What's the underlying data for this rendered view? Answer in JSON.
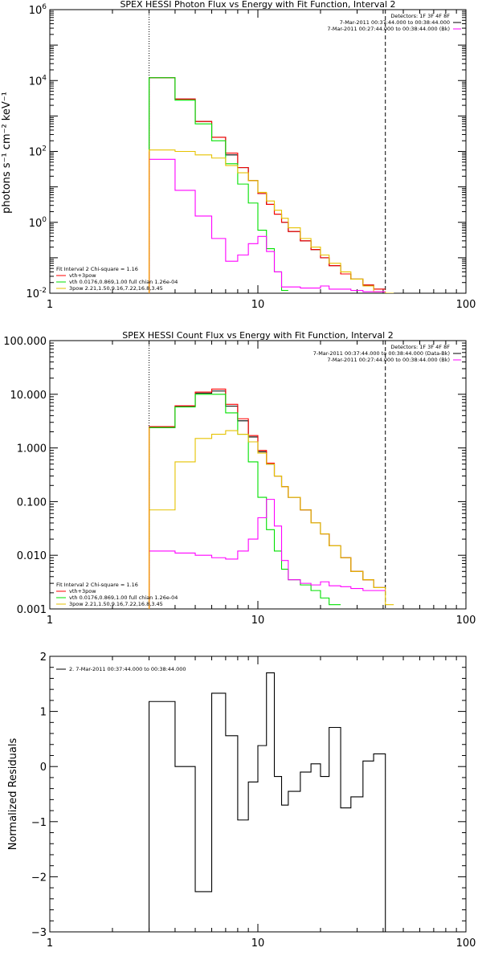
{
  "colors": {
    "black": "#000000",
    "red": "#ff0000",
    "green": "#00e000",
    "yellow": "#e6c200",
    "magenta": "#ff00ff",
    "orange": "#ff9900"
  },
  "chart_data": [
    {
      "type": "line",
      "title": "SPEX HESSI Photon Flux vs Energy with Fit Function, Interval 2",
      "xlabel": "",
      "ylabel": "photons s⁻¹ cm⁻² keV⁻¹",
      "xscale": "log",
      "yscale": "log",
      "xlim": [
        1,
        100
      ],
      "ylim": [
        0.01,
        1000000
      ],
      "xticks": [
        {
          "v": 1,
          "label": "1"
        },
        {
          "v": 10,
          "label": "10"
        },
        {
          "v": 100,
          "label": "100"
        }
      ],
      "yticks": [
        {
          "v": 0.01,
          "label": "10",
          "sup": "-2"
        },
        {
          "v": 1,
          "label": "10",
          "sup": "0"
        },
        {
          "v": 100,
          "label": "10",
          "sup": "2"
        },
        {
          "v": 10000,
          "label": "10",
          "sup": "4"
        },
        {
          "v": 1000000,
          "label": "10",
          "sup": "6"
        }
      ],
      "vlines": [
        {
          "x": 3,
          "style": "dotted"
        },
        {
          "x": 41,
          "style": "dashed"
        }
      ],
      "legend_right": {
        "position": "top-right",
        "lines": [
          {
            "text": "Detectors: 1F 3F 4F 8F",
            "color": ""
          },
          {
            "text": "7-Mar-2011 00:37:44.000 to 00:38:44.000",
            "color": "#000000"
          },
          {
            "text": "7-Mar-2011 00:27:44.000 to 00:38:44.000 (Bk)",
            "color": "#ff00ff"
          }
        ]
      },
      "legend_left": {
        "position": "bottom-left",
        "header": "Fit Interval  2   Chi-square = 1.16",
        "lines": [
          {
            "text": "vth+3pow",
            "color": "#ff0000"
          },
          {
            "text": "vth 0.0176,0.869,1.00  full chian 1.26e-04",
            "color": "#00e000"
          },
          {
            "text": "3pow 2.21,1.50,9.16,7.22,16.8,3.45",
            "color": "#e6c200"
          }
        ]
      },
      "series": [
        {
          "color": "#000000",
          "edges": [
            3,
            4,
            5,
            6,
            7,
            8,
            9,
            10,
            11,
            12,
            13,
            14,
            16,
            18,
            20,
            22,
            25,
            28,
            32,
            36,
            41
          ],
          "values": [
            12000,
            3000,
            700,
            250,
            80,
            35,
            15,
            6.5,
            3.2,
            1.7,
            1.0,
            0.55,
            0.3,
            0.17,
            0.1,
            0.06,
            0.035,
            0.025,
            0.017,
            0.013
          ]
        },
        {
          "color": "#ff0000",
          "edges": [
            3,
            4,
            5,
            6,
            7,
            8,
            9,
            10,
            11,
            12,
            13,
            14,
            16,
            18,
            20,
            22,
            25,
            28,
            32,
            36,
            41
          ],
          "values": [
            12000,
            3000,
            700,
            250,
            90,
            35,
            15,
            6.5,
            3.2,
            1.7,
            1.0,
            0.55,
            0.3,
            0.17,
            0.1,
            0.06,
            0.035,
            0.025,
            0.017,
            0.013
          ]
        },
        {
          "color": "#00e000",
          "edges": [
            3,
            4,
            5,
            6,
            7,
            8,
            9,
            10,
            11,
            12,
            13,
            14
          ],
          "values": [
            12000,
            2800,
            600,
            200,
            45,
            12,
            3.5,
            0.6,
            0.18,
            0.04,
            0.012
          ]
        },
        {
          "color": "#e6c200",
          "edges": [
            3,
            4,
            5,
            6,
            7,
            8,
            9,
            10,
            11,
            12,
            13,
            14,
            16,
            18,
            20,
            22,
            25,
            28,
            32,
            36,
            41,
            45
          ],
          "values": [
            110,
            100,
            80,
            65,
            40,
            25,
            15,
            7,
            4,
            2.2,
            1.3,
            0.7,
            0.35,
            0.2,
            0.12,
            0.07,
            0.04,
            0.025,
            0.016,
            0.011,
            0.008
          ]
        },
        {
          "color": "#ff00ff",
          "edges": [
            3,
            4,
            5,
            6,
            7,
            8,
            9,
            10,
            11,
            12,
            13,
            14,
            16,
            18,
            20,
            22,
            25,
            28,
            32,
            36,
            41
          ],
          "values": [
            60,
            8,
            1.5,
            0.35,
            0.08,
            0.12,
            0.25,
            0.4,
            0.15,
            0.04,
            0.015,
            0.015,
            0.014,
            0.014,
            0.016,
            0.013,
            0.013,
            0.012,
            0.011,
            0.011
          ]
        }
      ]
    },
    {
      "type": "line",
      "title": "SPEX HESSI Count Flux vs Energy with Fit Function, Interval 2",
      "xlabel": "",
      "ylabel": "",
      "xscale": "log",
      "yscale": "log",
      "xlim": [
        1,
        100
      ],
      "ylim": [
        0.001,
        100
      ],
      "xticks": [
        {
          "v": 1,
          "label": "1"
        },
        {
          "v": 10,
          "label": "10"
        },
        {
          "v": 100,
          "label": "100"
        }
      ],
      "yticks": [
        {
          "v": 0.001,
          "label": "0.001"
        },
        {
          "v": 0.01,
          "label": "0.010"
        },
        {
          "v": 0.1,
          "label": "0.100"
        },
        {
          "v": 1,
          "label": "1.000"
        },
        {
          "v": 10,
          "label": "10.000"
        },
        {
          "v": 100,
          "label": "100.000"
        }
      ],
      "vlines": [
        {
          "x": 3,
          "style": "dotted"
        },
        {
          "x": 41,
          "style": "dashed"
        }
      ],
      "legend_right": {
        "position": "top-right",
        "lines": [
          {
            "text": "Detectors: 1F 3F 4F 8F",
            "color": ""
          },
          {
            "text": "7-Mar-2011 00:37:44.000 to 00:38:44.000 (Data-Bk)",
            "color": "#000000"
          },
          {
            "text": "7-Mar-2011 00:27:44.000 to 00:38:44.000 (Bk)",
            "color": "#ff00ff"
          }
        ]
      },
      "legend_left": {
        "position": "bottom-left",
        "header": "Fit Interval  2   Chi-square = 1.16",
        "lines": [
          {
            "text": "vth+3pow",
            "color": "#ff0000"
          },
          {
            "text": "vth 0.0176,0.869,1.00  full chian 1.26e-04",
            "color": "#00e000"
          },
          {
            "text": "3pow 2.21,1.50,9.16,7.22,16.8,3.45",
            "color": "#e6c200"
          }
        ]
      },
      "series": [
        {
          "color": "#000000",
          "edges": [
            3,
            4,
            5,
            6,
            7,
            8,
            9,
            10,
            11,
            12,
            13,
            14,
            16,
            18,
            20,
            22,
            25,
            28,
            32,
            36,
            41
          ],
          "values": [
            2.4,
            6.0,
            10.5,
            11.5,
            6.0,
            3.2,
            1.6,
            0.85,
            0.5,
            0.3,
            0.19,
            0.12,
            0.07,
            0.04,
            0.025,
            0.015,
            0.009,
            0.005,
            0.0035,
            0.0025
          ]
        },
        {
          "color": "#ff0000",
          "edges": [
            3,
            4,
            5,
            6,
            7,
            8,
            9,
            10,
            11,
            12,
            13,
            14,
            16,
            18,
            20,
            22,
            25,
            28,
            32,
            36,
            41
          ],
          "values": [
            2.5,
            6.1,
            11.0,
            12.5,
            6.5,
            3.5,
            1.7,
            0.9,
            0.52,
            0.3,
            0.19,
            0.12,
            0.07,
            0.04,
            0.025,
            0.015,
            0.009,
            0.005,
            0.0035,
            0.0025
          ]
        },
        {
          "color": "#00e000",
          "edges": [
            3,
            4,
            5,
            6,
            7,
            8,
            9,
            10,
            11,
            12,
            13,
            14,
            16,
            18,
            20,
            22,
            25
          ],
          "values": [
            2.4,
            5.8,
            10.0,
            10.0,
            4.5,
            1.8,
            0.55,
            0.12,
            0.03,
            0.012,
            0.0055,
            0.0035,
            0.0028,
            0.0022,
            0.0016,
            0.0012
          ]
        },
        {
          "color": "#e6c200",
          "edges": [
            3,
            4,
            5,
            6,
            7,
            8,
            9,
            10,
            11,
            12,
            13,
            14,
            16,
            18,
            20,
            22,
            25,
            28,
            32,
            36,
            41,
            45
          ],
          "values": [
            0.07,
            0.55,
            1.5,
            1.8,
            2.1,
            1.8,
            1.3,
            0.8,
            0.5,
            0.3,
            0.19,
            0.12,
            0.07,
            0.04,
            0.025,
            0.015,
            0.009,
            0.005,
            0.0035,
            0.0025,
            0.0012
          ]
        },
        {
          "color": "#ff00ff",
          "edges": [
            3,
            4,
            5,
            6,
            7,
            8,
            9,
            10,
            11,
            12,
            13,
            14,
            16,
            18,
            20,
            22,
            25,
            28,
            32,
            36,
            41
          ],
          "values": [
            0.012,
            0.011,
            0.01,
            0.009,
            0.0085,
            0.012,
            0.02,
            0.05,
            0.11,
            0.035,
            0.008,
            0.0035,
            0.003,
            0.0028,
            0.0032,
            0.0027,
            0.0026,
            0.0024,
            0.0022,
            0.0022
          ]
        }
      ]
    },
    {
      "type": "line",
      "title": "",
      "xlabel": "",
      "ylabel": "Normalized Residuals",
      "xscale": "log",
      "yscale": "linear",
      "xlim": [
        1,
        100
      ],
      "ylim": [
        -3,
        2
      ],
      "xticks": [
        {
          "v": 1,
          "label": "1"
        },
        {
          "v": 10,
          "label": "10"
        },
        {
          "v": 100,
          "label": "100"
        }
      ],
      "yticks": [
        {
          "v": -3,
          "label": "−3"
        },
        {
          "v": -2,
          "label": "−2"
        },
        {
          "v": -1,
          "label": "−1"
        },
        {
          "v": 0,
          "label": "0"
        },
        {
          "v": 1,
          "label": "1"
        },
        {
          "v": 2,
          "label": "2"
        }
      ],
      "vlines": [],
      "legend_right": null,
      "legend_left": {
        "position": "top-left",
        "header": "",
        "lines": [
          {
            "text": "2.  7-Mar-2011 00:37:44.000 to 00:38:44.000",
            "color": "#000000"
          }
        ]
      },
      "series": [
        {
          "color": "#000000",
          "edges": [
            3,
            4,
            5,
            6,
            7,
            8,
            9,
            10,
            11,
            12,
            13,
            14,
            16,
            18,
            20,
            22,
            25,
            28,
            32,
            36,
            41
          ],
          "values": [
            1.18,
            0.0,
            -2.27,
            1.33,
            0.56,
            -0.97,
            -0.28,
            0.38,
            1.7,
            -0.18,
            -0.7,
            -0.45,
            -0.1,
            0.05,
            -0.18,
            0.71,
            -0.75,
            -0.55,
            0.1,
            0.23
          ],
          "drop_to_bottom": true
        }
      ]
    }
  ]
}
